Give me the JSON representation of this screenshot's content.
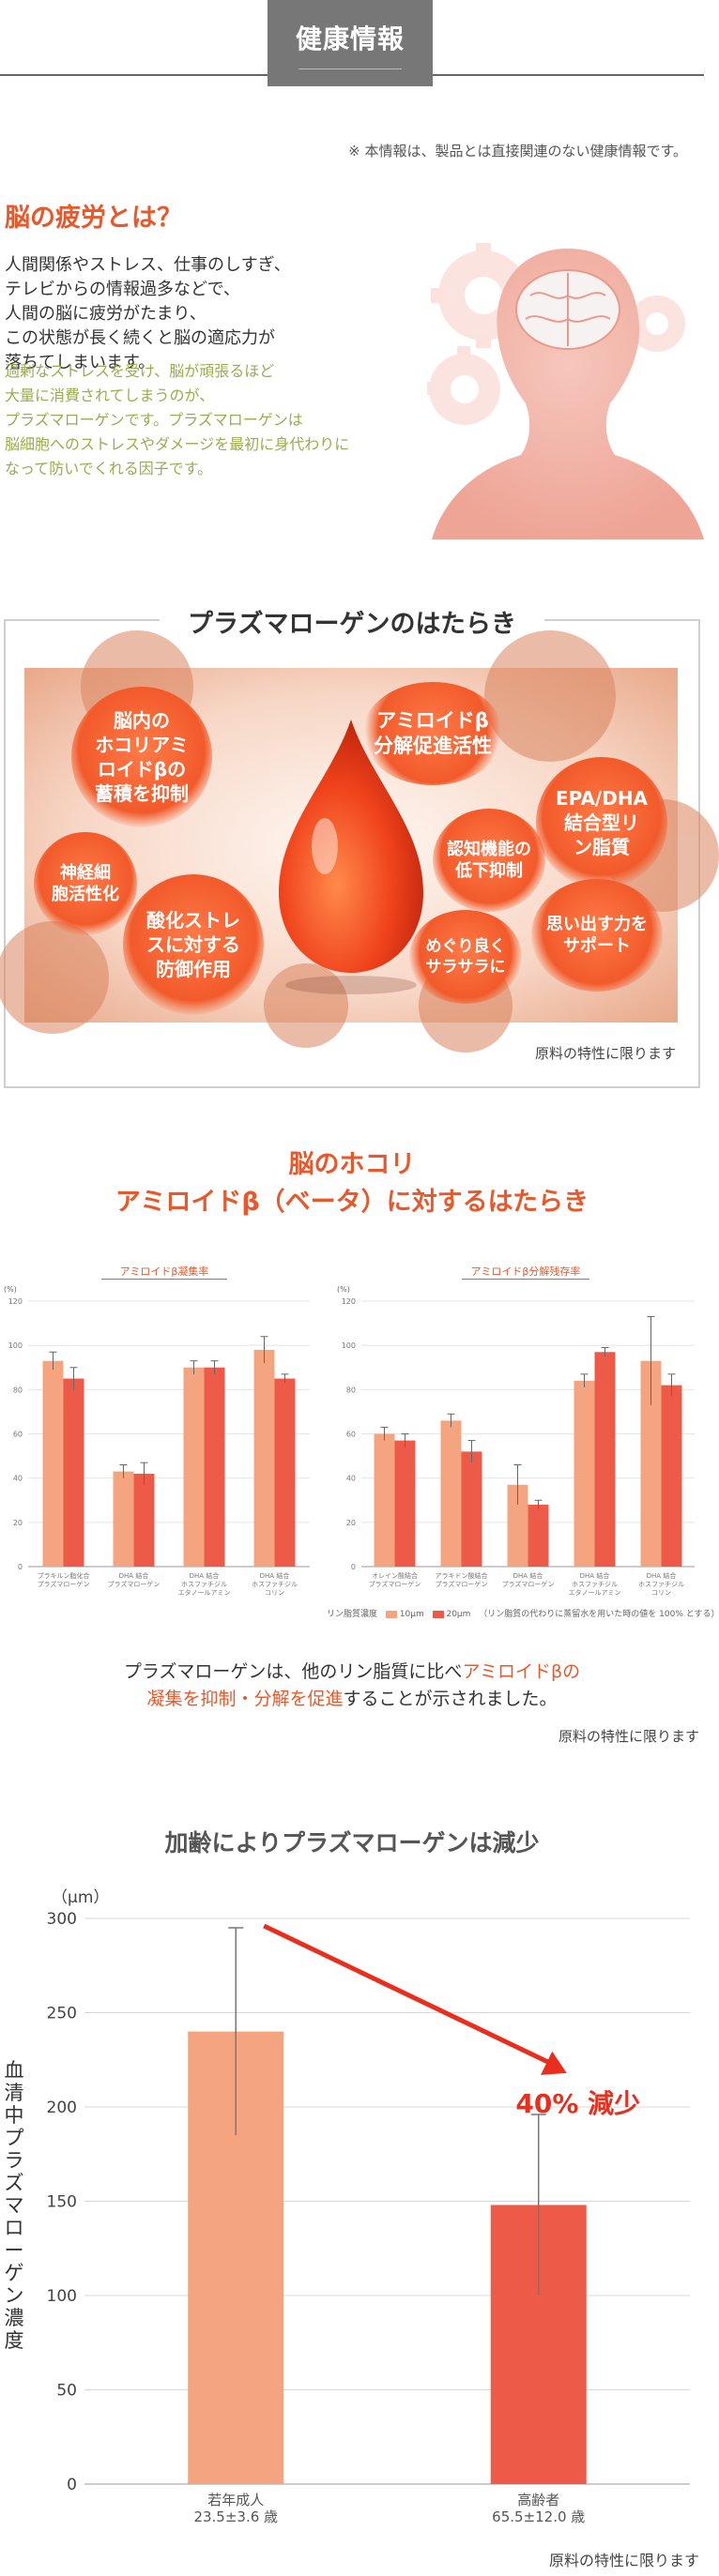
{
  "header": {
    "title": "健康情報"
  },
  "disclaimer": "※ 本情報は、製品とは直接関連のない健康情報です。",
  "section1": {
    "title": "脳の疲労とは？",
    "body": [
      "人間関係やストレス、仕事のしすぎ、",
      "テレビからの情報過多などで、",
      "人間の脳に疲労がたまり、",
      "この状態が長く続くと脳の適応力が",
      "落ちてしまいます。"
    ],
    "green": [
      "過剰なストレスを受け、脳が頑張るほど",
      "大量に消費されてしまうのが、",
      "プラズマローゲンです。プラズマローゲンは",
      "脳細胞へのストレスやダメージを最初に身代わりに",
      "なって防いでくれる因子です。"
    ]
  },
  "section2": {
    "title": "プラズマローゲンのはたらき",
    "bubbles": [
      {
        "text": "脳内の\nホコリアミ\nロイドβの\n蓄積を抑制"
      },
      {
        "text": "アミロイドβ\n分解促進活性"
      },
      {
        "text": "EPA/DHA\n結合型リ\nン脂質"
      },
      {
        "text": "神経細\n胞活性化"
      },
      {
        "text": "認知機能の\n低下抑制"
      },
      {
        "text": "酸化ストレ\nスに対する\n防御作用"
      },
      {
        "text": "めぐり良く\nサラサラに"
      },
      {
        "text": "思い出す力を\nサポート"
      }
    ],
    "note": "原料の特性に限ります"
  },
  "section3": {
    "title_line1": "脳のホコリ",
    "title_line2": "アミロイドβ（ベータ）に対するはたらき",
    "legend_prefix": "リン脂質濃度",
    "legend_a": "10μm",
    "legend_b": "20μm",
    "legend_note": "（リン脂質の代わりに蒸留水を用いた時の値を 100% とする）",
    "desc_line1_a": "プラズマローゲンは、他のリン脂質に比べ",
    "desc_line1_b": "アミロイドβの",
    "desc_line2_a": "凝集を抑制・分解を促進",
    "desc_line2_b": "することが示されました。",
    "note": "原料の特性に限ります",
    "colors": {
      "light": "#f4a57f",
      "dark": "#ee5a48"
    }
  },
  "chart_data": [
    {
      "type": "bar",
      "title": "アミロイドβ凝集率",
      "ylabel": "(%)",
      "ylim": [
        0,
        120
      ],
      "yticks": [
        0,
        20,
        40,
        60,
        80,
        100,
        120
      ],
      "categories": [
        "プラキルン脂化合\nプラズマローゲン",
        "DHA 結合\nプラズマローゲン",
        "DHA 結合\nホスファチジル\nエタノールアミン",
        "DHA 結合\nホスファチジル\nコリン"
      ],
      "series": [
        {
          "name": "10μm",
          "values": [
            93,
            43,
            90,
            98
          ],
          "errors": [
            4,
            3,
            3,
            6
          ]
        },
        {
          "name": "20μm",
          "values": [
            85,
            42,
            90,
            85
          ],
          "errors": [
            5,
            5,
            3,
            2
          ]
        }
      ]
    },
    {
      "type": "bar",
      "title": "アミロイドβ分解残存率",
      "ylabel": "(%)",
      "ylim": [
        0,
        120
      ],
      "yticks": [
        0,
        20,
        40,
        60,
        80,
        100,
        120
      ],
      "categories": [
        "オレイン酸結合\nプラズマローゲン",
        "アラキドン酸結合\nプラズマローゲン",
        "DHA 結合\nプラズマローゲン",
        "DHA 結合\nホスファチジル\nエタノールアミン",
        "DHA 結合\nホスファチジル\nコリン"
      ],
      "series": [
        {
          "name": "10μm",
          "values": [
            60,
            66,
            37,
            84,
            93
          ],
          "errors": [
            3,
            3,
            9,
            3,
            20
          ]
        },
        {
          "name": "20μm",
          "values": [
            57,
            52,
            28,
            97,
            82
          ],
          "errors": [
            3,
            5,
            2,
            2,
            5
          ]
        }
      ]
    },
    {
      "type": "bar",
      "title": "加齢によりプラズマローゲンは減少",
      "ylabel": "血清中プラズマローゲン濃度",
      "unit": "（μm）",
      "ylim": [
        0,
        300
      ],
      "yticks": [
        0,
        50,
        100,
        150,
        200,
        250,
        300
      ],
      "categories": [
        "若年成人\n23.5±3.6 歳",
        "高齢者\n65.5±12.0 歳"
      ],
      "values": [
        240,
        148
      ],
      "errors": [
        55,
        48
      ],
      "colors": [
        "#f4a57f",
        "#ee5a48"
      ],
      "annotation": "40% 減少",
      "note": "原料の特性に限ります"
    }
  ]
}
